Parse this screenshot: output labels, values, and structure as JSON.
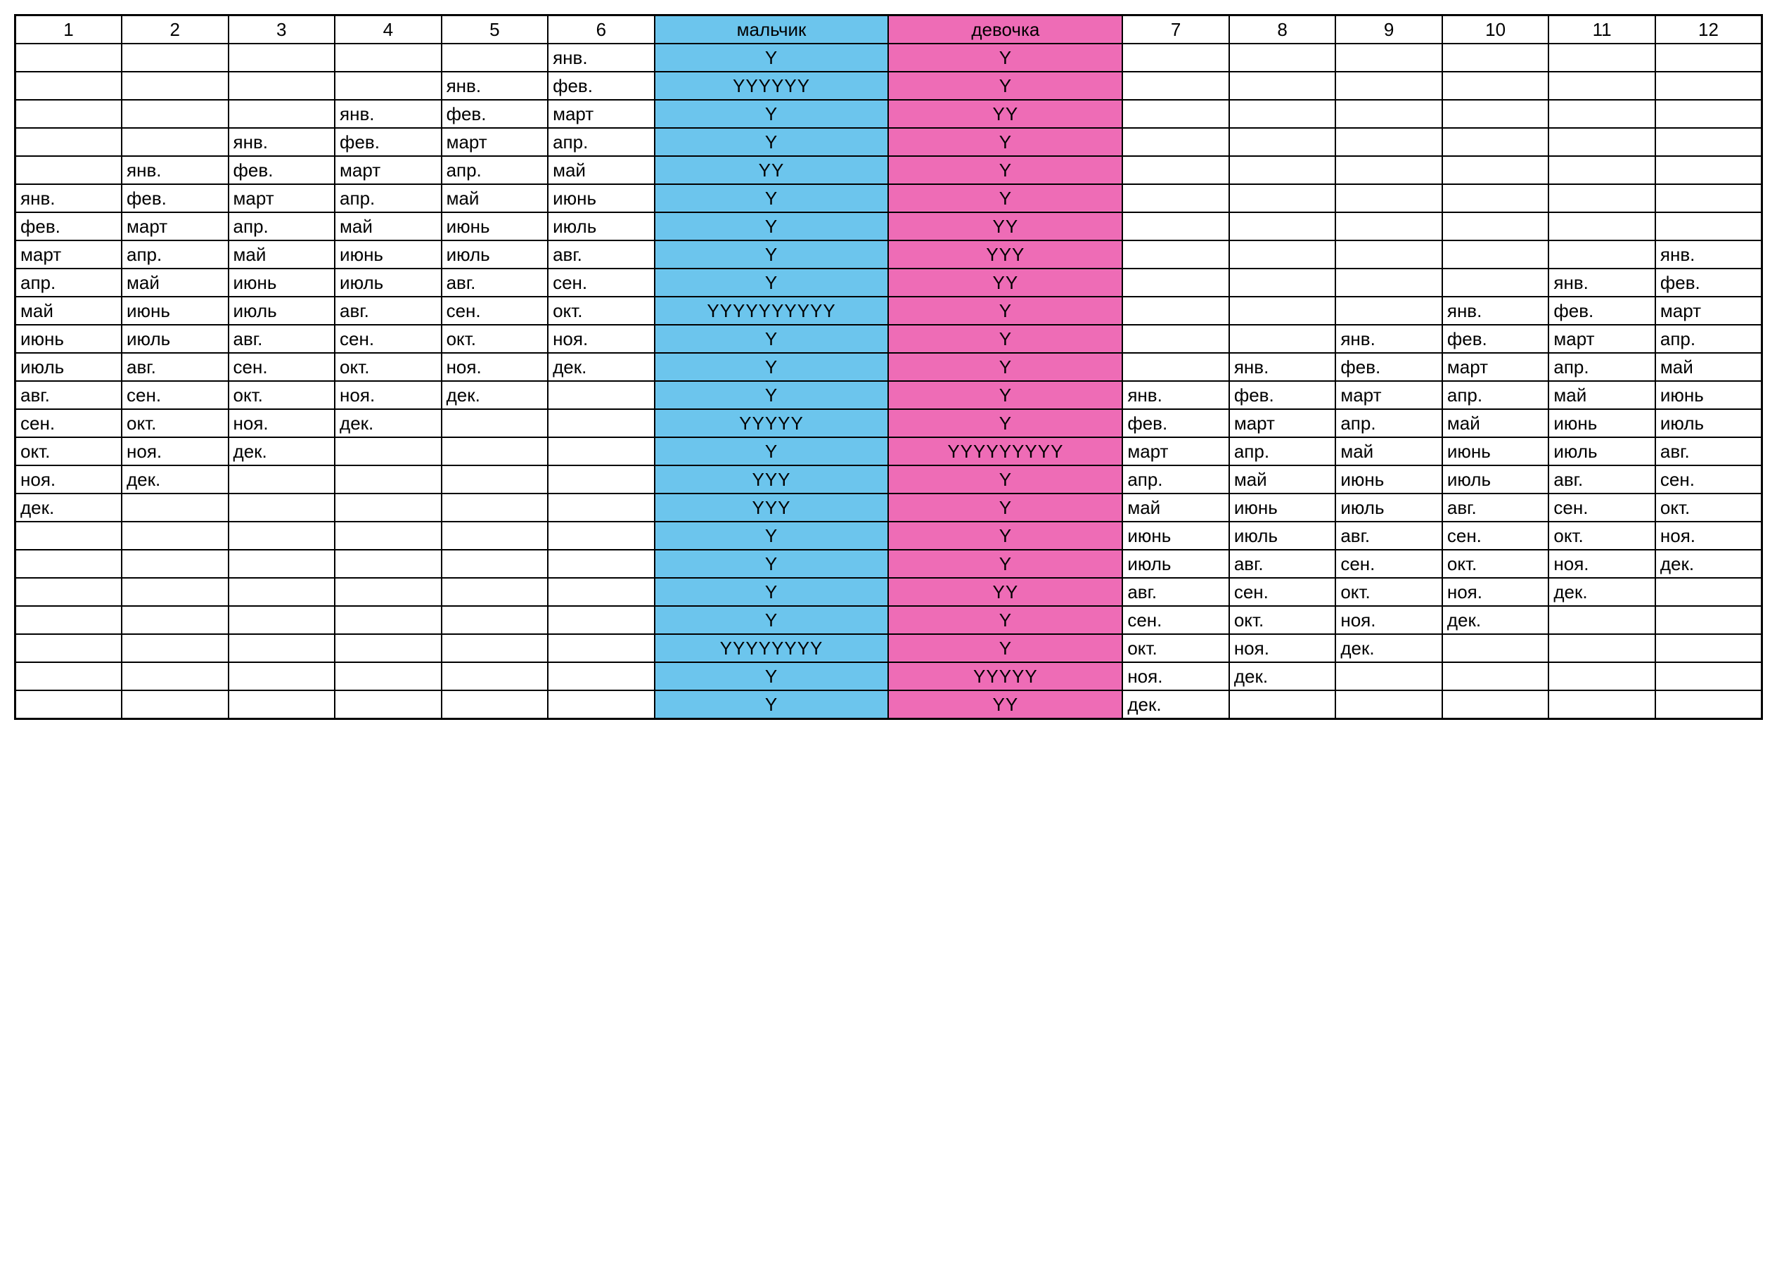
{
  "colors": {
    "boy_bg": "#6cc5ed",
    "girl_bg": "#ee6cb6",
    "border": "#000000",
    "background": "#ffffff",
    "text": "#000000"
  },
  "font": {
    "family": "Arial",
    "size_pt": 20
  },
  "headers": {
    "c1": "1",
    "c2": "2",
    "c3": "3",
    "c4": "4",
    "c5": "5",
    "c6": "6",
    "boy": "мальчик",
    "girl": "девочка",
    "c7": "7",
    "c8": "8",
    "c9": "9",
    "c10": "10",
    "c11": "11",
    "c12": "12"
  },
  "rows": [
    {
      "c1": "",
      "c2": "",
      "c3": "",
      "c4": "",
      "c5": "",
      "c6": "янв.",
      "boy": "Y",
      "girl": "Y",
      "c7": "",
      "c8": "",
      "c9": "",
      "c10": "",
      "c11": "",
      "c12": ""
    },
    {
      "c1": "",
      "c2": "",
      "c3": "",
      "c4": "",
      "c5": "янв.",
      "c6": "фев.",
      "boy": "YYYYYY",
      "girl": "Y",
      "c7": "",
      "c8": "",
      "c9": "",
      "c10": "",
      "c11": "",
      "c12": ""
    },
    {
      "c1": "",
      "c2": "",
      "c3": "",
      "c4": "янв.",
      "c5": "фев.",
      "c6": "март",
      "boy": "Y",
      "girl": "YY",
      "c7": "",
      "c8": "",
      "c9": "",
      "c10": "",
      "c11": "",
      "c12": ""
    },
    {
      "c1": "",
      "c2": "",
      "c3": "янв.",
      "c4": "фев.",
      "c5": "март",
      "c6": "апр.",
      "boy": "Y",
      "girl": "Y",
      "c7": "",
      "c8": "",
      "c9": "",
      "c10": "",
      "c11": "",
      "c12": ""
    },
    {
      "c1": "",
      "c2": "янв.",
      "c3": "фев.",
      "c4": "март",
      "c5": "апр.",
      "c6": "май",
      "boy": "YY",
      "girl": "Y",
      "c7": "",
      "c8": "",
      "c9": "",
      "c10": "",
      "c11": "",
      "c12": ""
    },
    {
      "c1": "янв.",
      "c2": "фев.",
      "c3": "март",
      "c4": "апр.",
      "c5": "май",
      "c6": "июнь",
      "boy": "Y",
      "girl": "Y",
      "c7": "",
      "c8": "",
      "c9": "",
      "c10": "",
      "c11": "",
      "c12": ""
    },
    {
      "c1": "фев.",
      "c2": "март",
      "c3": "апр.",
      "c4": "май",
      "c5": "июнь",
      "c6": "июль",
      "boy": "Y",
      "girl": "YY",
      "c7": "",
      "c8": "",
      "c9": "",
      "c10": "",
      "c11": "",
      "c12": ""
    },
    {
      "c1": "март",
      "c2": "апр.",
      "c3": "май",
      "c4": "июнь",
      "c5": "июль",
      "c6": "авг.",
      "boy": "Y",
      "girl": "YYY",
      "c7": "",
      "c8": "",
      "c9": "",
      "c10": "",
      "c11": "",
      "c12": "янв."
    },
    {
      "c1": "апр.",
      "c2": "май",
      "c3": "июнь",
      "c4": "июль",
      "c5": "авг.",
      "c6": "сен.",
      "boy": "Y",
      "girl": "YY",
      "c7": "",
      "c8": "",
      "c9": "",
      "c10": "",
      "c11": "янв.",
      "c12": "фев."
    },
    {
      "c1": "май",
      "c2": "июнь",
      "c3": "июль",
      "c4": "авг.",
      "c5": "сен.",
      "c6": "окт.",
      "boy": "YYYYYYYYYY",
      "girl": "Y",
      "c7": "",
      "c8": "",
      "c9": "",
      "c10": "янв.",
      "c11": "фев.",
      "c12": "март"
    },
    {
      "c1": "июнь",
      "c2": "июль",
      "c3": "авг.",
      "c4": "сен.",
      "c5": "окт.",
      "c6": "ноя.",
      "boy": "Y",
      "girl": "Y",
      "c7": "",
      "c8": "",
      "c9": "янв.",
      "c10": "фев.",
      "c11": "март",
      "c12": "апр."
    },
    {
      "c1": "июль",
      "c2": "авг.",
      "c3": "сен.",
      "c4": "окт.",
      "c5": "ноя.",
      "c6": "дек.",
      "boy": "Y",
      "girl": "Y",
      "c7": "",
      "c8": "янв.",
      "c9": "фев.",
      "c10": "март",
      "c11": "апр.",
      "c12": "май"
    },
    {
      "c1": "авг.",
      "c2": "сен.",
      "c3": "окт.",
      "c4": "ноя.",
      "c5": "дек.",
      "c6": "",
      "boy": "Y",
      "girl": "Y",
      "c7": "янв.",
      "c8": "фев.",
      "c9": "март",
      "c10": "апр.",
      "c11": "май",
      "c12": "июнь"
    },
    {
      "c1": "сен.",
      "c2": "окт.",
      "c3": "ноя.",
      "c4": "дек.",
      "c5": "",
      "c6": "",
      "boy": "YYYYY",
      "girl": "Y",
      "c7": "фев.",
      "c8": "март",
      "c9": "апр.",
      "c10": "май",
      "c11": "июнь",
      "c12": "июль"
    },
    {
      "c1": "окт.",
      "c2": "ноя.",
      "c3": "дек.",
      "c4": "",
      "c5": "",
      "c6": "",
      "boy": "Y",
      "girl": "YYYYYYYYY",
      "c7": "март",
      "c8": "апр.",
      "c9": "май",
      "c10": "июнь",
      "c11": "июль",
      "c12": "авг."
    },
    {
      "c1": "ноя.",
      "c2": "дек.",
      "c3": "",
      "c4": "",
      "c5": "",
      "c6": "",
      "boy": "YYY",
      "girl": "Y",
      "c7": "апр.",
      "c8": "май",
      "c9": "июнь",
      "c10": "июль",
      "c11": "авг.",
      "c12": "сен."
    },
    {
      "c1": "дек.",
      "c2": "",
      "c3": "",
      "c4": "",
      "c5": "",
      "c6": "",
      "boy": "YYY",
      "girl": "Y",
      "c7": "май",
      "c8": "июнь",
      "c9": "июль",
      "c10": "авг.",
      "c11": "сен.",
      "c12": "окт."
    },
    {
      "c1": "",
      "c2": "",
      "c3": "",
      "c4": "",
      "c5": "",
      "c6": "",
      "boy": "Y",
      "girl": "Y",
      "c7": "июнь",
      "c8": "июль",
      "c9": "авг.",
      "c10": "сен.",
      "c11": "окт.",
      "c12": "ноя."
    },
    {
      "c1": "",
      "c2": "",
      "c3": "",
      "c4": "",
      "c5": "",
      "c6": "",
      "boy": "Y",
      "girl": "Y",
      "c7": "июль",
      "c8": "авг.",
      "c9": "сен.",
      "c10": "окт.",
      "c11": "ноя.",
      "c12": "дек."
    },
    {
      "c1": "",
      "c2": "",
      "c3": "",
      "c4": "",
      "c5": "",
      "c6": "",
      "boy": "Y",
      "girl": "YY",
      "c7": "авг.",
      "c8": "сен.",
      "c9": "окт.",
      "c10": "ноя.",
      "c11": "дек.",
      "c12": ""
    },
    {
      "c1": "",
      "c2": "",
      "c3": "",
      "c4": "",
      "c5": "",
      "c6": "",
      "boy": "Y",
      "girl": "Y",
      "c7": "сен.",
      "c8": "окт.",
      "c9": "ноя.",
      "c10": "дек.",
      "c11": "",
      "c12": ""
    },
    {
      "c1": "",
      "c2": "",
      "c3": "",
      "c4": "",
      "c5": "",
      "c6": "",
      "boy": "YYYYYYYY",
      "girl": "Y",
      "c7": "окт.",
      "c8": "ноя.",
      "c9": "дек.",
      "c10": "",
      "c11": "",
      "c12": ""
    },
    {
      "c1": "",
      "c2": "",
      "c3": "",
      "c4": "",
      "c5": "",
      "c6": "",
      "boy": "Y",
      "girl": "YYYYY",
      "c7": "ноя.",
      "c8": "дек.",
      "c9": "",
      "c10": "",
      "c11": "",
      "c12": ""
    },
    {
      "c1": "",
      "c2": "",
      "c3": "",
      "c4": "",
      "c5": "",
      "c6": "",
      "boy": "Y",
      "girl": "YY",
      "c7": "дек.",
      "c8": "",
      "c9": "",
      "c10": "",
      "c11": "",
      "c12": ""
    }
  ]
}
